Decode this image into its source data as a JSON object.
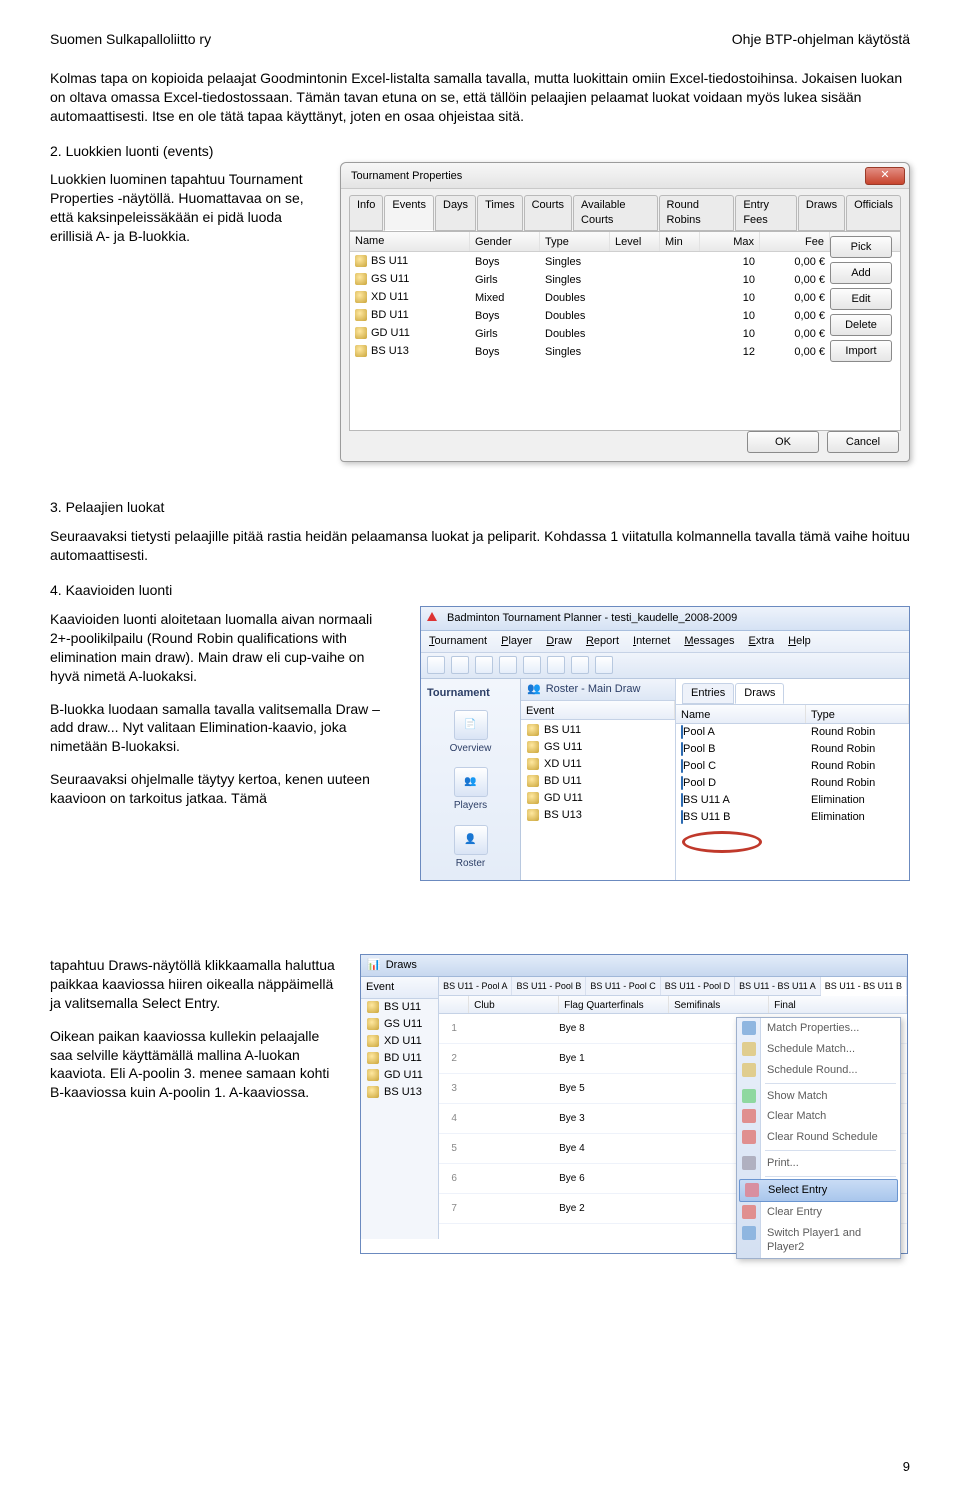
{
  "header": {
    "left": "Suomen Sulkapalloliitto ry",
    "right": "Ohje BTP-ohjelman käytöstä"
  },
  "para1": "Kolmas tapa on kopioida pelaajat Goodmintonin Excel-listalta samalla tavalla, mutta luokittain omiin Excel-tiedostoihinsa. Jokaisen luokan on oltava omassa Excel-tiedostossaan. Tämän tavan etuna on se, että tällöin pelaajien pelaamat luokat voidaan myös lukea sisään automaattisesti. Itse en ole tätä tapaa käyttänyt, joten en osaa ohjeistaa sitä.",
  "h2": "2. Luokkien luonti (events)",
  "h2_text": "Luokkien luominen tapahtuu Tournament Properties -näytöllä. Huomattavaa on se, että kaksinpeleissäkään ei pidä luoda erillisiä A- ja B-luokkia.",
  "h3": "3. Pelaajien luokat",
  "h3_text": "Seuraavaksi tietysti pelaajille pitää rastia heidän pelaamansa luokat ja peliparit. Kohdassa 1 viitatulla kolmannella tavalla tämä vaihe hoituu automaattisesti.",
  "h4": "4. Kaavioiden luonti",
  "h4_p1": "Kaavioiden luonti aloitetaan luomalla aivan normaali 2+-poolikilpailu (Round Robin qualifications with elimination main draw). Main draw eli cup-vaihe on hyvä nimetä A-luokaksi.",
  "h4_p2": "B-luokka luodaan samalla tavalla valitsemalla Draw – add draw... Nyt valitaan Elimination-kaavio, joka nimetään B-luokaksi.",
  "h4_p3": "Seuraavaksi ohjelmalle täytyy kertoa, kenen uuteen kaavioon on tarkoitus jatkaa. Tämä tapahtuu Draws-näytöllä klikkaamalla haluttua paikkaa kaaviossa hiiren oikealla näppäimellä ja valitsemalla Select Entry.",
  "h4_p4": "Oikean paikan kaaviossa kullekin pelaajalle saa selville käyttämällä mallina A-luokan kaaviota. Eli A-poolin 3. menee samaan kohti B-kaaviossa kuin A-poolin 1. A-kaaviossa.",
  "page_num": "9",
  "dialog1": {
    "title": "Tournament Properties",
    "tabs": [
      "Info",
      "Events",
      "Days",
      "Times",
      "Courts",
      "Available Courts",
      "Round Robins",
      "Entry Fees",
      "Draws",
      "Officials"
    ],
    "active_tab": 1,
    "cols": [
      "Name",
      "Gender",
      "Type",
      "Level",
      "Min",
      "Max",
      "Fee"
    ],
    "rows": [
      {
        "name": "BS U11",
        "gender": "Boys",
        "type": "Singles",
        "max": "10",
        "fee": "0,00 €"
      },
      {
        "name": "GS U11",
        "gender": "Girls",
        "type": "Singles",
        "max": "10",
        "fee": "0,00 €"
      },
      {
        "name": "XD U11",
        "gender": "Mixed",
        "type": "Doubles",
        "max": "10",
        "fee": "0,00 €"
      },
      {
        "name": "BD U11",
        "gender": "Boys",
        "type": "Doubles",
        "max": "10",
        "fee": "0,00 €"
      },
      {
        "name": "GD U11",
        "gender": "Girls",
        "type": "Doubles",
        "max": "10",
        "fee": "0,00 €"
      },
      {
        "name": "BS U13",
        "gender": "Boys",
        "type": "Singles",
        "max": "12",
        "fee": "0,00 €"
      }
    ],
    "side_buttons": [
      "Pick",
      "Add",
      "Edit",
      "Delete",
      "Import"
    ],
    "ok": "OK",
    "cancel": "Cancel"
  },
  "app2": {
    "title": "Badminton Tournament Planner - testi_kaudelle_2008-2009",
    "menu": [
      "Tournament",
      "Player",
      "Draw",
      "Report",
      "Internet",
      "Messages",
      "Extra",
      "Help"
    ],
    "nav_header": "Tournament",
    "nav": [
      "Overview",
      "Players",
      "Roster"
    ],
    "mid_header": "Roster - Main Draw",
    "mid_col": "Event",
    "mid_items": [
      "BS U11",
      "GS U11",
      "XD U11",
      "BD U11",
      "GD U11",
      "BS U13"
    ],
    "subtab_entries": "Entries",
    "subtab_draws": "Draws",
    "r_cols": [
      "Name",
      "Type"
    ],
    "r_rows": [
      {
        "name": "Pool A",
        "type": "Round Robin"
      },
      {
        "name": "Pool B",
        "type": "Round Robin"
      },
      {
        "name": "Pool C",
        "type": "Round Robin"
      },
      {
        "name": "Pool D",
        "type": "Round Robin"
      },
      {
        "name": "BS U11 A",
        "type": "Elimination"
      },
      {
        "name": "BS U11 B",
        "type": "Elimination"
      }
    ]
  },
  "draws": {
    "title": "Draws",
    "ev_hdr": "Event",
    "ev_items": [
      "BS U11",
      "GS U11",
      "XD U11",
      "BD U11",
      "GD U11",
      "BS U13"
    ],
    "tabs": [
      "BS U11 - Pool A",
      "BS U11 - Pool B",
      "BS U11 - Pool C",
      "BS U11 - Pool D",
      "BS U11 - BS U11 A",
      "BS U11 - BS U11 B"
    ],
    "active_tab": 5,
    "bracket_cols": [
      "",
      "Club",
      "Flag  Quarterfinals",
      "Semifinals",
      "Final"
    ],
    "rows": [
      {
        "n": "1",
        "qf": "Bye 8"
      },
      {
        "n": "2",
        "qf": "Bye 1"
      },
      {
        "n": "3",
        "qf": "Bye 5"
      },
      {
        "n": "4",
        "qf": "Bye 3"
      },
      {
        "n": "5",
        "qf": "Bye 4"
      },
      {
        "n": "6",
        "qf": "Bye 6"
      },
      {
        "n": "7",
        "qf": "Bye 2"
      }
    ],
    "context_menu": [
      {
        "label": "Match Properties...",
        "ico": "#8fb6e0"
      },
      {
        "label": "Schedule Match...",
        "ico": "#e0cd8f"
      },
      {
        "label": "Schedule Round...",
        "ico": "#e0cd8f"
      },
      "sep",
      {
        "label": "Show Match",
        "ico": "#8fd8a0"
      },
      {
        "label": "Clear Match",
        "ico": "#e08f8f"
      },
      {
        "label": "Clear Round Schedule",
        "ico": "#e08f8f"
      },
      "sep",
      {
        "label": "Print...",
        "ico": "#b0b0c0"
      },
      "sep",
      {
        "label": "Select Entry",
        "active": true,
        "ico": "#d88fa0"
      },
      {
        "label": "Clear Entry",
        "ico": "#e08f8f"
      },
      {
        "label": "Switch Player1 and Player2",
        "ico": "#8fb6e0"
      }
    ]
  }
}
